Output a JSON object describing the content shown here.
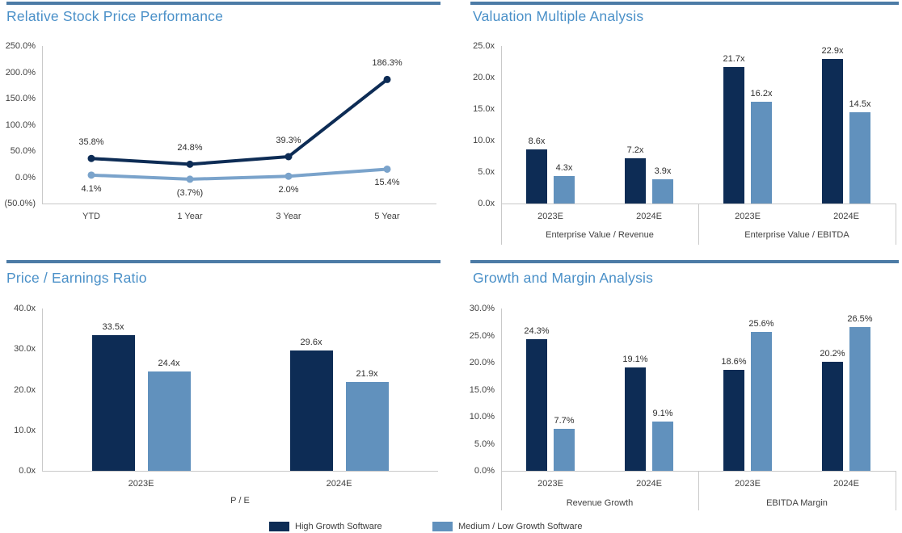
{
  "colors": {
    "series1": "#0D2C55",
    "series2": "#6191BD",
    "series2_line": "#7AA3CB",
    "title": "#4A90C8",
    "panel_rule": "#4C7BA6",
    "axis_line": "#C9C9C9",
    "tick_text": "#414141",
    "data_label_text": "#2E2E2E"
  },
  "legend": {
    "items": [
      {
        "label": "High Growth Software",
        "series": 1
      },
      {
        "label": "Medium / Low Growth Software",
        "series": 2
      }
    ]
  },
  "chart_data": [
    {
      "id": "relative-stock-price-performance",
      "type": "line",
      "title": "Relative Stock Price Performance",
      "categories": [
        "YTD",
        "1 Year",
        "3 Year",
        "5 Year"
      ],
      "series": [
        {
          "name": "High Growth Software",
          "values": [
            35.8,
            24.8,
            39.3,
            186.3
          ],
          "labels": [
            "35.8%",
            "24.8%",
            "39.3%",
            "186.3%"
          ],
          "label_position": "above"
        },
        {
          "name": "Medium / Low Growth Software",
          "values": [
            4.1,
            -3.7,
            2.0,
            15.4
          ],
          "labels": [
            "4.1%",
            "(3.7%)",
            "2.0%",
            "15.4%"
          ],
          "label_position": "below"
        }
      ],
      "y_axis": {
        "min": -50,
        "max": 250,
        "ticks": [
          {
            "value": 250,
            "label": "250.0%"
          },
          {
            "value": 200,
            "label": "200.0%"
          },
          {
            "value": 150,
            "label": "150.0%"
          },
          {
            "value": 100,
            "label": "100.0%"
          },
          {
            "value": 50,
            "label": "50.0%"
          },
          {
            "value": 0,
            "label": "0.0%"
          },
          {
            "value": -50,
            "label": "(50.0%)"
          }
        ]
      },
      "grid": false,
      "legend_position": "bottom-shared"
    },
    {
      "id": "valuation-multiple-analysis",
      "type": "bar",
      "title": "Valuation Multiple Analysis",
      "groups": [
        {
          "label": "Enterprise Value / Revenue",
          "categories": [
            "2023E",
            "2024E"
          ]
        },
        {
          "label": "Enterprise Value / EBITDA",
          "categories": [
            "2023E",
            "2024E"
          ]
        }
      ],
      "series": [
        {
          "name": "High Growth Software",
          "values": [
            8.6,
            7.2,
            21.7,
            22.9
          ],
          "labels": [
            "8.6x",
            "7.2x",
            "21.7x",
            "22.9x"
          ]
        },
        {
          "name": "Medium / Low Growth Software",
          "values": [
            4.3,
            3.9,
            16.2,
            14.5
          ],
          "labels": [
            "4.3x",
            "3.9x",
            "16.2x",
            "14.5x"
          ]
        }
      ],
      "y_axis": {
        "min": 0,
        "max": 25,
        "ticks": [
          {
            "value": 25,
            "label": "25.0x"
          },
          {
            "value": 20,
            "label": "20.0x"
          },
          {
            "value": 15,
            "label": "15.0x"
          },
          {
            "value": 10,
            "label": "10.0x"
          },
          {
            "value": 5,
            "label": "5.0x"
          },
          {
            "value": 0,
            "label": "0.0x"
          }
        ]
      },
      "grid": false,
      "legend_position": "bottom-shared"
    },
    {
      "id": "price-earnings-ratio",
      "type": "bar",
      "title": "Price / Earnings Ratio",
      "groups": [
        {
          "label": "P / E",
          "categories": [
            "2023E",
            "2024E"
          ]
        }
      ],
      "series": [
        {
          "name": "High Growth Software",
          "values": [
            33.5,
            29.6
          ],
          "labels": [
            "33.5x",
            "29.6x"
          ]
        },
        {
          "name": "Medium / Low Growth Software",
          "values": [
            24.4,
            21.9
          ],
          "labels": [
            "24.4x",
            "21.9x"
          ]
        }
      ],
      "y_axis": {
        "min": 0,
        "max": 40,
        "ticks": [
          {
            "value": 40,
            "label": "40.0x"
          },
          {
            "value": 30,
            "label": "30.0x"
          },
          {
            "value": 20,
            "label": "20.0x"
          },
          {
            "value": 10,
            "label": "10.0x"
          },
          {
            "value": 0,
            "label": "0.0x"
          }
        ]
      },
      "grid": false,
      "legend_position": "bottom-shared"
    },
    {
      "id": "growth-and-margin-analysis",
      "type": "bar",
      "title": "Growth and Margin Analysis",
      "groups": [
        {
          "label": "Revenue Growth",
          "categories": [
            "2023E",
            "2024E"
          ]
        },
        {
          "label": "EBITDA Margin",
          "categories": [
            "2023E",
            "2024E"
          ]
        }
      ],
      "series": [
        {
          "name": "High Growth Software",
          "values": [
            24.3,
            19.1,
            18.6,
            20.2
          ],
          "labels": [
            "24.3%",
            "19.1%",
            "18.6%",
            "20.2%"
          ]
        },
        {
          "name": "Medium / Low Growth Software",
          "values": [
            7.7,
            9.1,
            25.6,
            26.5
          ],
          "labels": [
            "7.7%",
            "9.1%",
            "25.6%",
            "26.5%"
          ]
        }
      ],
      "y_axis": {
        "min": 0,
        "max": 30,
        "ticks": [
          {
            "value": 30,
            "label": "30.0%"
          },
          {
            "value": 25,
            "label": "25.0%"
          },
          {
            "value": 20,
            "label": "20.0%"
          },
          {
            "value": 15,
            "label": "15.0%"
          },
          {
            "value": 10,
            "label": "10.0%"
          },
          {
            "value": 5,
            "label": "5.0%"
          },
          {
            "value": 0,
            "label": "0.0%"
          }
        ]
      },
      "grid": false,
      "legend_position": "bottom-shared"
    }
  ]
}
